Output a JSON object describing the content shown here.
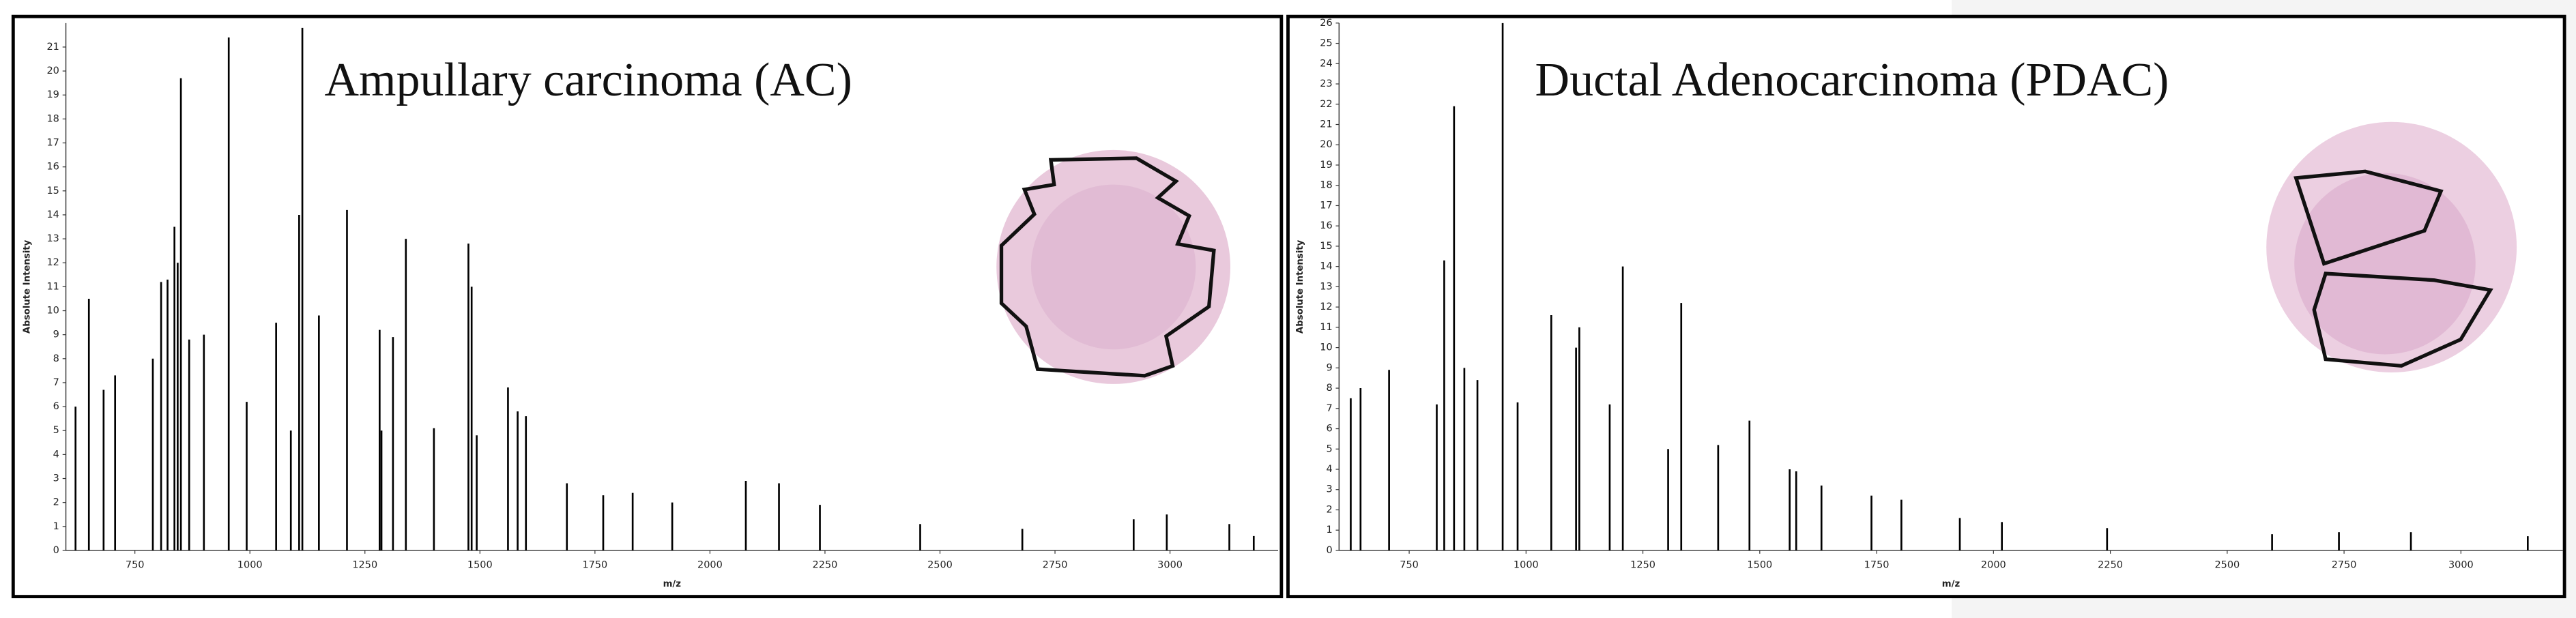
{
  "chart_data": [
    {
      "type": "spectrum",
      "title": "Ampullary carcinoma (AC)",
      "x_label": "m/z",
      "y_label": "Absolute Intensity",
      "color": "#000000",
      "xlim": [
        600,
        3235
      ],
      "ylim": [
        0,
        22
      ],
      "xticks": [
        750,
        1000,
        1250,
        1500,
        1750,
        2000,
        2250,
        2500,
        2750,
        3000
      ],
      "yticks": [
        0,
        1,
        2,
        3,
        4,
        5,
        6,
        7,
        8,
        9,
        10,
        11,
        12,
        13,
        14,
        15,
        16,
        17,
        18,
        19,
        20,
        21
      ],
      "x": [
        621,
        650,
        682,
        707,
        789,
        807,
        821,
        836,
        843,
        850,
        868,
        900,
        954,
        993,
        1057,
        1089,
        1107,
        1114,
        1150,
        1211,
        1282,
        1286,
        1311,
        1339,
        1400,
        1475,
        1482,
        1493,
        1561,
        1582,
        1600,
        1689,
        1768,
        1832,
        1918,
        2078,
        2150,
        2239,
        2457,
        2679,
        2921,
        2993,
        3129,
        3182
      ],
      "values": [
        6,
        10.5,
        6.7,
        7.3,
        8,
        11.2,
        11.3,
        13.5,
        12,
        19.7,
        8.8,
        9,
        21.4,
        6.2,
        9.5,
        5,
        14,
        21.8,
        9.8,
        14.2,
        9.2,
        5,
        8.9,
        13,
        5.1,
        12.8,
        11,
        4.8,
        6.8,
        5.8,
        5.6,
        2.8,
        2.3,
        2.4,
        2,
        2.9,
        2.8,
        1.9,
        1.1,
        0.9,
        1.3,
        1.5,
        1.1,
        0.6
      ]
    },
    {
      "type": "spectrum",
      "title": "Ductal Adenocarcinoma (PDAC)",
      "x_label": "m/z",
      "y_label": "Absolute Intensity",
      "color": "#000000",
      "xlim": [
        600,
        3218
      ],
      "ylim": [
        0,
        26
      ],
      "xticks": [
        750,
        1000,
        1250,
        1500,
        1750,
        2000,
        2250,
        2500,
        2750,
        3000
      ],
      "yticks": [
        0,
        1,
        2,
        3,
        4,
        5,
        6,
        7,
        8,
        9,
        10,
        11,
        12,
        13,
        14,
        15,
        16,
        17,
        18,
        19,
        20,
        21,
        22,
        23,
        24,
        25,
        26
      ],
      "x": [
        625,
        646,
        707,
        809,
        825,
        846,
        868,
        896,
        950,
        982,
        1054,
        1107,
        1114,
        1179,
        1207,
        1304,
        1332,
        1411,
        1478,
        1564,
        1578,
        1632,
        1739,
        1803,
        1928,
        2018,
        2243,
        2596,
        2739,
        2893,
        3143
      ],
      "values": [
        7.5,
        8,
        8.9,
        7.2,
        14.3,
        21.9,
        9,
        8.4,
        26,
        7.3,
        11.6,
        10,
        11,
        7.2,
        14,
        5,
        12.2,
        5.2,
        6.4,
        4,
        3.9,
        3.2,
        2.7,
        2.5,
        1.6,
        1.4,
        1.1,
        0.8,
        0.9,
        0.9,
        0.7
      ]
    }
  ]
}
